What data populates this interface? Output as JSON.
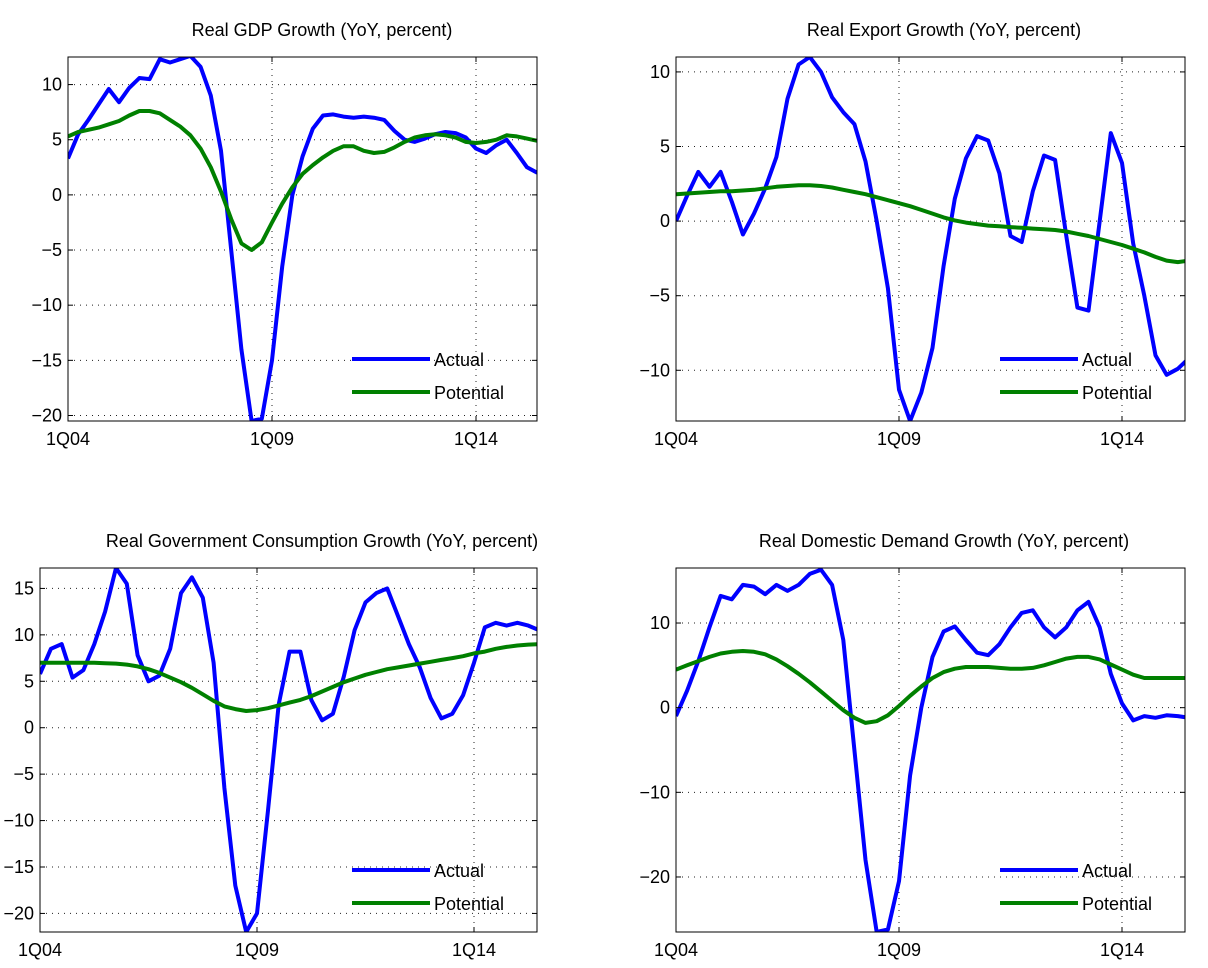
{
  "chart_data": [
    {
      "type": "line",
      "title": "Real GDP Growth (YoY, percent)",
      "xlabel": "",
      "ylabel": "",
      "x_ticks": [
        "1Q04",
        "1Q09",
        "1Q14"
      ],
      "y_ticks": [
        -20,
        -15,
        -10,
        -5,
        0,
        5,
        10
      ],
      "ylim": [
        -20.5,
        12.5
      ],
      "grid": true,
      "legend_position": "bottom-right",
      "series": [
        {
          "name": "Actual",
          "color": "#0000ff",
          "values": [
            3.3,
            5.5,
            6.8,
            8.2,
            9.6,
            8.4,
            9.7,
            10.6,
            10.5,
            12.3,
            12.0,
            12.3,
            12.6,
            11.6,
            9.0,
            4.0,
            -5.0,
            -14.0,
            -20.5,
            -20.3,
            -15.0,
            -6.5,
            0.0,
            3.5,
            6.0,
            7.2,
            7.3,
            7.1,
            7.0,
            7.1,
            7.0,
            6.8,
            5.8,
            5.0,
            4.8,
            5.1,
            5.5,
            5.7,
            5.6,
            5.2,
            4.2,
            3.8,
            4.5,
            5.0,
            3.8,
            2.5,
            2.0
          ]
        },
        {
          "name": "Potential",
          "color": "#008000",
          "values": [
            5.3,
            5.7,
            5.9,
            6.1,
            6.4,
            6.7,
            7.2,
            7.6,
            7.6,
            7.4,
            6.8,
            6.2,
            5.4,
            4.2,
            2.5,
            0.3,
            -2.2,
            -4.4,
            -5.0,
            -4.3,
            -2.5,
            -0.8,
            0.7,
            1.9,
            2.7,
            3.4,
            4.0,
            4.4,
            4.4,
            4.0,
            3.8,
            3.9,
            4.3,
            4.8,
            5.2,
            5.4,
            5.5,
            5.4,
            5.2,
            4.8,
            4.7,
            4.8,
            5.0,
            5.4,
            5.3,
            5.1,
            4.9
          ]
        }
      ]
    },
    {
      "type": "line",
      "title": "Real Export Growth (YoY, percent)",
      "xlabel": "",
      "ylabel": "",
      "x_ticks": [
        "1Q04",
        "1Q09",
        "1Q14"
      ],
      "y_ticks": [
        -10,
        -5,
        0,
        5,
        10
      ],
      "ylim": [
        -13.4,
        11.0
      ],
      "grid": true,
      "legend_position": "bottom-right",
      "series": [
        {
          "name": "Actual",
          "color": "#0000ff",
          "values": [
            0.0,
            1.7,
            3.3,
            2.3,
            3.3,
            1.3,
            -0.9,
            0.5,
            2.2,
            4.3,
            8.2,
            10.5,
            11.0,
            10.0,
            8.3,
            7.3,
            6.5,
            4.0,
            0.0,
            -4.5,
            -11.3,
            -13.4,
            -11.5,
            -8.5,
            -3.0,
            1.5,
            4.2,
            5.7,
            5.4,
            3.2,
            -1.0,
            -1.4,
            2.0,
            4.4,
            4.1,
            -1.0,
            -5.8,
            -6.0,
            0.0,
            5.9,
            3.9,
            -1.5,
            -5.0,
            -9.0,
            -10.3,
            -9.9,
            -9.2
          ]
        },
        {
          "name": "Potential",
          "color": "#008000",
          "values": [
            1.8,
            1.85,
            1.9,
            1.95,
            2.0,
            2.0,
            2.05,
            2.1,
            2.2,
            2.3,
            2.35,
            2.4,
            2.4,
            2.35,
            2.25,
            2.1,
            1.95,
            1.8,
            1.6,
            1.4,
            1.2,
            1.0,
            0.75,
            0.5,
            0.25,
            0.05,
            -0.1,
            -0.2,
            -0.3,
            -0.35,
            -0.4,
            -0.45,
            -0.5,
            -0.55,
            -0.6,
            -0.7,
            -0.85,
            -1.0,
            -1.2,
            -1.4,
            -1.6,
            -1.85,
            -2.1,
            -2.4,
            -2.65,
            -2.75,
            -2.65
          ]
        }
      ]
    },
    {
      "type": "line",
      "title": "Real Government Consumption Growth (YoY, percent)",
      "xlabel": "",
      "ylabel": "",
      "x_ticks": [
        "1Q04",
        "1Q09",
        "1Q14"
      ],
      "y_ticks": [
        -20,
        -15,
        -10,
        -5,
        0,
        5,
        10,
        15
      ],
      "ylim": [
        -22.0,
        17.2
      ],
      "grid": true,
      "legend_position": "bottom-right",
      "series": [
        {
          "name": "Actual",
          "color": "#0000ff",
          "values": [
            5.8,
            8.5,
            9.0,
            5.4,
            6.2,
            9.0,
            12.5,
            17.2,
            15.5,
            7.8,
            5.0,
            5.6,
            8.5,
            14.5,
            16.2,
            14.0,
            7.0,
            -6.5,
            -17.0,
            -22.0,
            -20.0,
            -9.0,
            2.5,
            8.2,
            8.2,
            3.0,
            0.8,
            1.5,
            5.5,
            10.5,
            13.5,
            14.5,
            15.0,
            12.0,
            9.0,
            6.5,
            3.2,
            1.0,
            1.5,
            3.5,
            7.0,
            10.8,
            11.3,
            11.0,
            11.3,
            11.0,
            10.5
          ]
        },
        {
          "name": "Potential",
          "color": "#008000",
          "values": [
            7.0,
            7.0,
            7.0,
            7.0,
            7.0,
            7.0,
            6.95,
            6.9,
            6.8,
            6.6,
            6.3,
            5.9,
            5.4,
            4.9,
            4.3,
            3.6,
            2.9,
            2.3,
            2.0,
            1.8,
            1.9,
            2.1,
            2.4,
            2.7,
            3.0,
            3.4,
            3.9,
            4.4,
            4.9,
            5.3,
            5.7,
            6.0,
            6.3,
            6.5,
            6.7,
            6.9,
            7.1,
            7.3,
            7.5,
            7.7,
            8.0,
            8.2,
            8.5,
            8.7,
            8.85,
            8.95,
            9.0
          ]
        }
      ]
    },
    {
      "type": "line",
      "title": "Real Domestic Demand Growth (YoY, percent)",
      "xlabel": "",
      "ylabel": "",
      "x_ticks": [
        "1Q04",
        "1Q09",
        "1Q14"
      ],
      "y_ticks": [
        -20,
        -10,
        0,
        10
      ],
      "ylim": [
        -26.5,
        16.5
      ],
      "grid": true,
      "legend_position": "bottom-right",
      "series": [
        {
          "name": "Actual",
          "color": "#0000ff",
          "values": [
            -1.0,
            2.0,
            5.5,
            9.5,
            13.2,
            12.8,
            14.5,
            14.3,
            13.4,
            14.5,
            13.8,
            14.5,
            15.8,
            16.3,
            14.5,
            8.0,
            -5.0,
            -18.0,
            -26.5,
            -26.2,
            -20.5,
            -8.0,
            0.0,
            6.0,
            9.0,
            9.6,
            8.0,
            6.5,
            6.2,
            7.5,
            9.5,
            11.2,
            11.5,
            9.5,
            8.3,
            9.5,
            11.5,
            12.5,
            9.5,
            4.0,
            0.5,
            -1.5,
            -1.0,
            -1.2,
            -0.9,
            -1.0,
            -1.2
          ]
        },
        {
          "name": "Potential",
          "color": "#008000",
          "values": [
            4.5,
            5.0,
            5.5,
            6.0,
            6.4,
            6.6,
            6.7,
            6.6,
            6.3,
            5.7,
            4.9,
            4.0,
            3.0,
            1.9,
            0.8,
            -0.3,
            -1.2,
            -1.8,
            -1.6,
            -0.9,
            0.2,
            1.4,
            2.5,
            3.5,
            4.2,
            4.6,
            4.8,
            4.8,
            4.8,
            4.7,
            4.6,
            4.6,
            4.7,
            5.0,
            5.4,
            5.8,
            6.0,
            6.0,
            5.7,
            5.1,
            4.5,
            3.9,
            3.5,
            3.5,
            3.5,
            3.5,
            3.5
          ]
        }
      ]
    }
  ]
}
